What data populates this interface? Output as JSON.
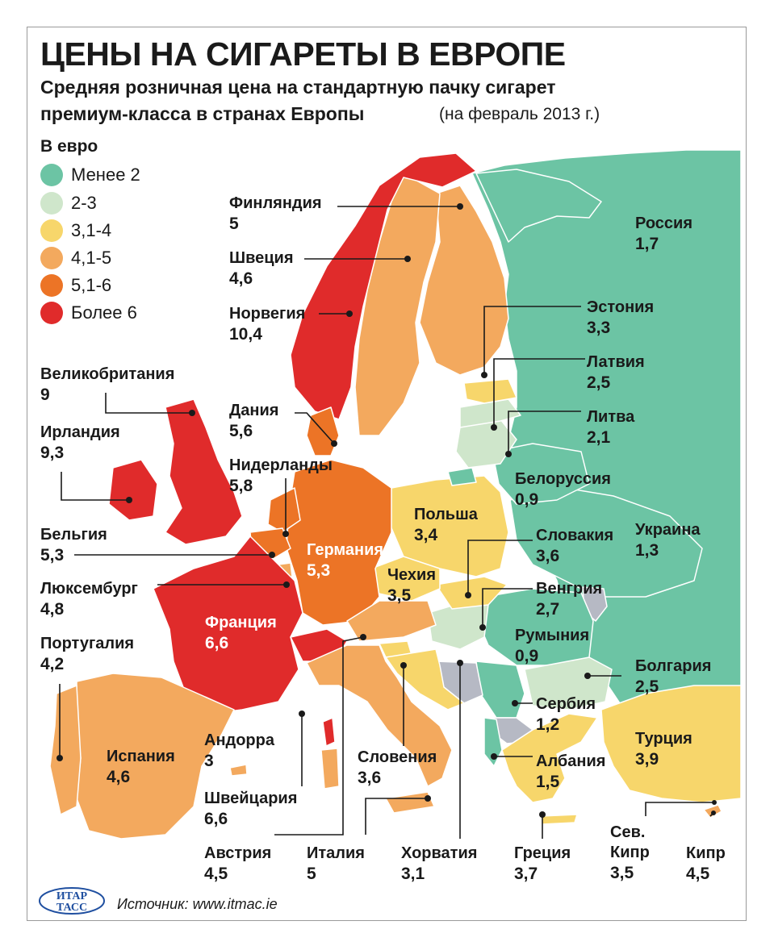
{
  "header": {
    "title": "ЦЕНЫ НА СИГАРЕТЫ В ЕВРОПЕ",
    "subtitle_line1": "Средняя розничная цена на стандартную пачку сигарет",
    "subtitle_line2": "премиум-класса в странах Европы",
    "date_note": "(на февраль 2013 г.)",
    "unit": "В евро"
  },
  "legend": [
    {
      "label": "Менее 2",
      "color": "#6cc4a4"
    },
    {
      "label": "2-3",
      "color": "#cfe6cb"
    },
    {
      "label": "3,1-4",
      "color": "#f7d66b"
    },
    {
      "label": "4,1-5",
      "color": "#f3a95e"
    },
    {
      "label": "5,1-6",
      "color": "#ec7426"
    },
    {
      "label": "Более 6",
      "color": "#e02b2b"
    }
  ],
  "countries": {
    "finland": {
      "name": "Финляндия",
      "value": "5"
    },
    "sweden": {
      "name": "Швеция",
      "value": "4,6"
    },
    "norway": {
      "name": "Норвегия",
      "value": "10,4"
    },
    "uk": {
      "name": "Великобритания",
      "value": "9"
    },
    "ireland": {
      "name": "Ирландия",
      "value": "9,3"
    },
    "denmark": {
      "name": "Дания",
      "value": "5,6"
    },
    "netherlands": {
      "name": "Нидерланды",
      "value": "5,8"
    },
    "belgium": {
      "name": "Бельгия",
      "value": "5,3"
    },
    "luxembourg": {
      "name": "Люксембург",
      "value": "4,8"
    },
    "portugal": {
      "name": "Португалия",
      "value": "4,2"
    },
    "spain": {
      "name": "Испания",
      "value": "4,6"
    },
    "andorra": {
      "name": "Андорра",
      "value": "3"
    },
    "switzerland": {
      "name": "Швейцария",
      "value": "6,6"
    },
    "austria": {
      "name": "Австрия",
      "value": "4,5"
    },
    "italy": {
      "name": "Италия",
      "value": "5"
    },
    "croatia": {
      "name": "Хорватия",
      "value": "3,1"
    },
    "slovenia": {
      "name": "Словения",
      "value": "3,6"
    },
    "france": {
      "name": "Франция",
      "value": "6,6"
    },
    "germany": {
      "name": "Германия",
      "value": "5,3"
    },
    "poland": {
      "name": "Польша",
      "value": "3,4"
    },
    "czechia": {
      "name": "Чехия",
      "value": "3,5"
    },
    "russia": {
      "name": "Россия",
      "value": "1,7"
    },
    "estonia": {
      "name": "Эстония",
      "value": "3,3"
    },
    "latvia": {
      "name": "Латвия",
      "value": "2,5"
    },
    "lithuania": {
      "name": "Литва",
      "value": "2,1"
    },
    "belarus": {
      "name": "Белоруссия",
      "value": "0,9"
    },
    "slovakia": {
      "name": "Словакия",
      "value": "3,6"
    },
    "ukraine": {
      "name": "Украина",
      "value": "1,3"
    },
    "hungary": {
      "name": "Венгрия",
      "value": "2,7"
    },
    "romania": {
      "name": "Румыния",
      "value": "0,9"
    },
    "bulgaria": {
      "name": "Болгария",
      "value": "2,5"
    },
    "serbia": {
      "name": "Сербия",
      "value": "1,2"
    },
    "turkey": {
      "name": "Турция",
      "value": "3,9"
    },
    "albania": {
      "name": "Албания",
      "value": "1,5"
    },
    "greece": {
      "name": "Греция",
      "value": "3,7"
    },
    "north_cyprus": {
      "name": "Сев.",
      "name2": "Кипр",
      "value": "3,5"
    },
    "cyprus": {
      "name": "Кипр",
      "value": "4,5"
    }
  },
  "footer": {
    "source": "Источник: www.itmac.ie",
    "logo_line1": "ИТАР",
    "logo_line2": "ТАСС"
  }
}
